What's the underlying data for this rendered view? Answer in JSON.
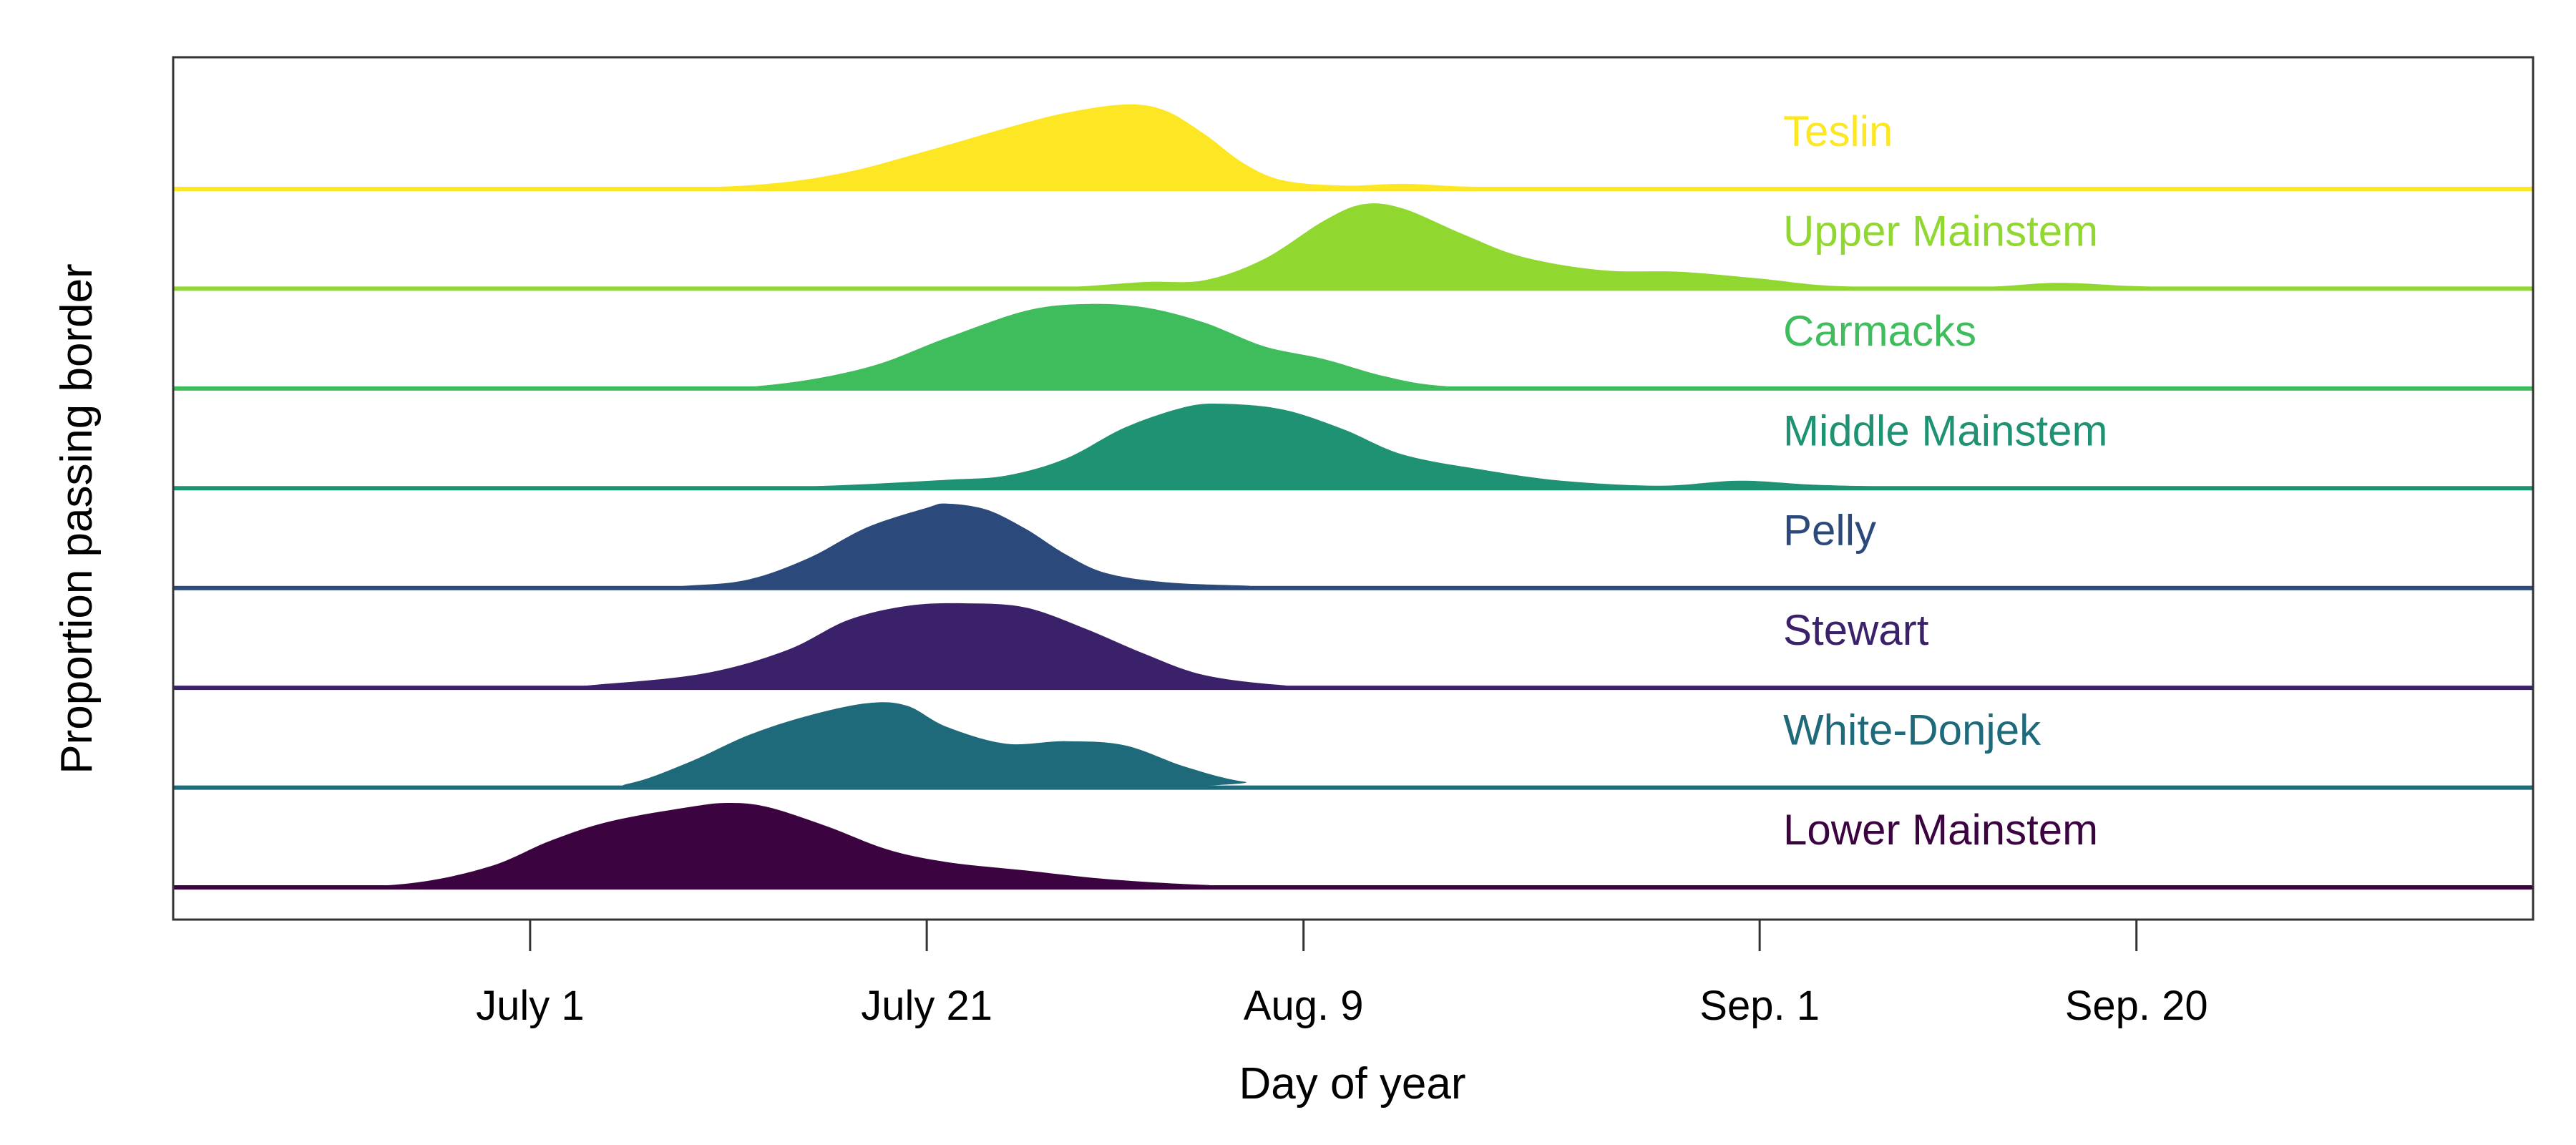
{
  "chart_data": {
    "type": "area",
    "subtype": "ridgeline",
    "title": "",
    "xlabel": "Day of year",
    "ylabel": "Proportion passing border",
    "xlim": [
      "2023-06-13",
      "2023-10-10"
    ],
    "x_ticks": [
      {
        "date": "2023-07-01",
        "label": "July 1"
      },
      {
        "date": "2023-07-21",
        "label": "July 21"
      },
      {
        "date": "2023-08-09",
        "label": "Aug. 9"
      },
      {
        "date": "2023-09-01",
        "label": "Sep. 1"
      },
      {
        "date": "2023-09-20",
        "label": "Sep. 20"
      }
    ],
    "grid": false,
    "legend": "labels inside plot, right of centre",
    "series": [
      {
        "name": "Teslin",
        "color": "#FDE725",
        "points": [
          [
            "2023-06-13",
            0
          ],
          [
            "2023-07-01",
            0
          ],
          [
            "2023-07-08",
            0.01
          ],
          [
            "2023-07-13",
            0.06
          ],
          [
            "2023-07-17",
            0.2
          ],
          [
            "2023-07-21",
            0.45
          ],
          [
            "2023-07-25",
            0.72
          ],
          [
            "2023-07-28",
            0.9
          ],
          [
            "2023-07-31",
            1.0
          ],
          [
            "2023-08-02",
            0.93
          ],
          [
            "2023-08-04",
            0.65
          ],
          [
            "2023-08-06",
            0.3
          ],
          [
            "2023-08-08",
            0.1
          ],
          [
            "2023-08-11",
            0.04
          ],
          [
            "2023-08-14",
            0.06
          ],
          [
            "2023-08-17",
            0.03
          ],
          [
            "2023-08-21",
            0.01
          ],
          [
            "2023-08-30",
            0
          ],
          [
            "2023-10-10",
            0
          ]
        ]
      },
      {
        "name": "Upper Mainstem",
        "color": "#90D72F",
        "points": [
          [
            "2023-06-13",
            0
          ],
          [
            "2023-07-22",
            0
          ],
          [
            "2023-07-28",
            0.02
          ],
          [
            "2023-08-01",
            0.08
          ],
          [
            "2023-08-04",
            0.1
          ],
          [
            "2023-08-07",
            0.35
          ],
          [
            "2023-08-10",
            0.8
          ],
          [
            "2023-08-12",
            1.0
          ],
          [
            "2023-08-14",
            0.95
          ],
          [
            "2023-08-17",
            0.65
          ],
          [
            "2023-08-20",
            0.38
          ],
          [
            "2023-08-24",
            0.22
          ],
          [
            "2023-08-28",
            0.2
          ],
          [
            "2023-09-01",
            0.12
          ],
          [
            "2023-09-05",
            0.03
          ],
          [
            "2023-09-12",
            0.02
          ],
          [
            "2023-09-16",
            0.07
          ],
          [
            "2023-09-20",
            0.03
          ],
          [
            "2023-09-26",
            0
          ],
          [
            "2023-10-10",
            0
          ]
        ]
      },
      {
        "name": "Carmacks",
        "color": "#3FBC5C",
        "points": [
          [
            "2023-06-13",
            0
          ],
          [
            "2023-07-07",
            0
          ],
          [
            "2023-07-13",
            0.04
          ],
          [
            "2023-07-18",
            0.25
          ],
          [
            "2023-07-22",
            0.6
          ],
          [
            "2023-07-26",
            0.92
          ],
          [
            "2023-07-29",
            1.0
          ],
          [
            "2023-08-01",
            0.96
          ],
          [
            "2023-08-04",
            0.78
          ],
          [
            "2023-08-07",
            0.5
          ],
          [
            "2023-08-10",
            0.35
          ],
          [
            "2023-08-13",
            0.15
          ],
          [
            "2023-08-16",
            0.03
          ],
          [
            "2023-08-21",
            0
          ],
          [
            "2023-10-10",
            0
          ]
        ]
      },
      {
        "name": "Middle Mainstem",
        "color": "#1F9273",
        "points": [
          [
            "2023-06-13",
            0
          ],
          [
            "2023-07-10",
            0
          ],
          [
            "2023-07-16",
            0.03
          ],
          [
            "2023-07-22",
            0.1
          ],
          [
            "2023-07-25",
            0.15
          ],
          [
            "2023-07-28",
            0.35
          ],
          [
            "2023-07-31",
            0.72
          ],
          [
            "2023-08-03",
            0.96
          ],
          [
            "2023-08-05",
            1.0
          ],
          [
            "2023-08-08",
            0.93
          ],
          [
            "2023-08-11",
            0.7
          ],
          [
            "2023-08-14",
            0.4
          ],
          [
            "2023-08-18",
            0.22
          ],
          [
            "2023-08-22",
            0.09
          ],
          [
            "2023-08-27",
            0.03
          ],
          [
            "2023-08-31",
            0.09
          ],
          [
            "2023-09-04",
            0.04
          ],
          [
            "2023-09-10",
            0.01
          ],
          [
            "2023-09-15",
            0
          ],
          [
            "2023-10-10",
            0
          ]
        ]
      },
      {
        "name": "Pelly",
        "color": "#2B4A7B",
        "points": [
          [
            "2023-06-13",
            0
          ],
          [
            "2023-07-05",
            0
          ],
          [
            "2023-07-09",
            0.03
          ],
          [
            "2023-07-12",
            0.1
          ],
          [
            "2023-07-15",
            0.35
          ],
          [
            "2023-07-18",
            0.72
          ],
          [
            "2023-07-21",
            0.95
          ],
          [
            "2023-07-22",
            1.0
          ],
          [
            "2023-07-24",
            0.93
          ],
          [
            "2023-07-26",
            0.7
          ],
          [
            "2023-07-28",
            0.4
          ],
          [
            "2023-07-30",
            0.18
          ],
          [
            "2023-08-02",
            0.07
          ],
          [
            "2023-08-06",
            0.03
          ],
          [
            "2023-08-12",
            0
          ],
          [
            "2023-10-10",
            0
          ]
        ]
      },
      {
        "name": "Stewart",
        "color": "#3A2169",
        "points": [
          [
            "2023-06-13",
            0
          ],
          [
            "2023-06-30",
            0
          ],
          [
            "2023-07-05",
            0.05
          ],
          [
            "2023-07-10",
            0.18
          ],
          [
            "2023-07-14",
            0.45
          ],
          [
            "2023-07-17",
            0.8
          ],
          [
            "2023-07-20",
            0.97
          ],
          [
            "2023-07-23",
            1.0
          ],
          [
            "2023-07-26",
            0.95
          ],
          [
            "2023-07-29",
            0.7
          ],
          [
            "2023-08-01",
            0.4
          ],
          [
            "2023-08-04",
            0.15
          ],
          [
            "2023-08-08",
            0.03
          ],
          [
            "2023-08-12",
            0
          ],
          [
            "2023-10-10",
            0
          ]
        ]
      },
      {
        "name": "White-Donjek",
        "color": "#1F6A7A",
        "points": [
          [
            "2023-06-13",
            0
          ],
          [
            "2023-07-03",
            0
          ],
          [
            "2023-07-06",
            0.05
          ],
          [
            "2023-07-09",
            0.3
          ],
          [
            "2023-07-12",
            0.62
          ],
          [
            "2023-07-15",
            0.85
          ],
          [
            "2023-07-18",
            1.0
          ],
          [
            "2023-07-20",
            0.97
          ],
          [
            "2023-07-22",
            0.72
          ],
          [
            "2023-07-25",
            0.52
          ],
          [
            "2023-07-28",
            0.55
          ],
          [
            "2023-07-31",
            0.5
          ],
          [
            "2023-08-03",
            0.25
          ],
          [
            "2023-08-06",
            0.07
          ],
          [
            "2023-08-10",
            0
          ],
          [
            "2023-10-10",
            0
          ]
        ]
      },
      {
        "name": "Lower Mainstem",
        "color": "#3B0340",
        "points": [
          [
            "2023-06-13",
            0
          ],
          [
            "2023-06-20",
            0
          ],
          [
            "2023-06-25",
            0.05
          ],
          [
            "2023-06-29",
            0.25
          ],
          [
            "2023-07-02",
            0.55
          ],
          [
            "2023-07-05",
            0.78
          ],
          [
            "2023-07-09",
            0.95
          ],
          [
            "2023-07-11",
            1.0
          ],
          [
            "2023-07-13",
            0.95
          ],
          [
            "2023-07-16",
            0.72
          ],
          [
            "2023-07-19",
            0.45
          ],
          [
            "2023-07-22",
            0.3
          ],
          [
            "2023-07-26",
            0.2
          ],
          [
            "2023-07-30",
            0.1
          ],
          [
            "2023-08-04",
            0.03
          ],
          [
            "2023-08-10",
            0
          ],
          [
            "2023-10-10",
            0
          ]
        ]
      }
    ]
  }
}
